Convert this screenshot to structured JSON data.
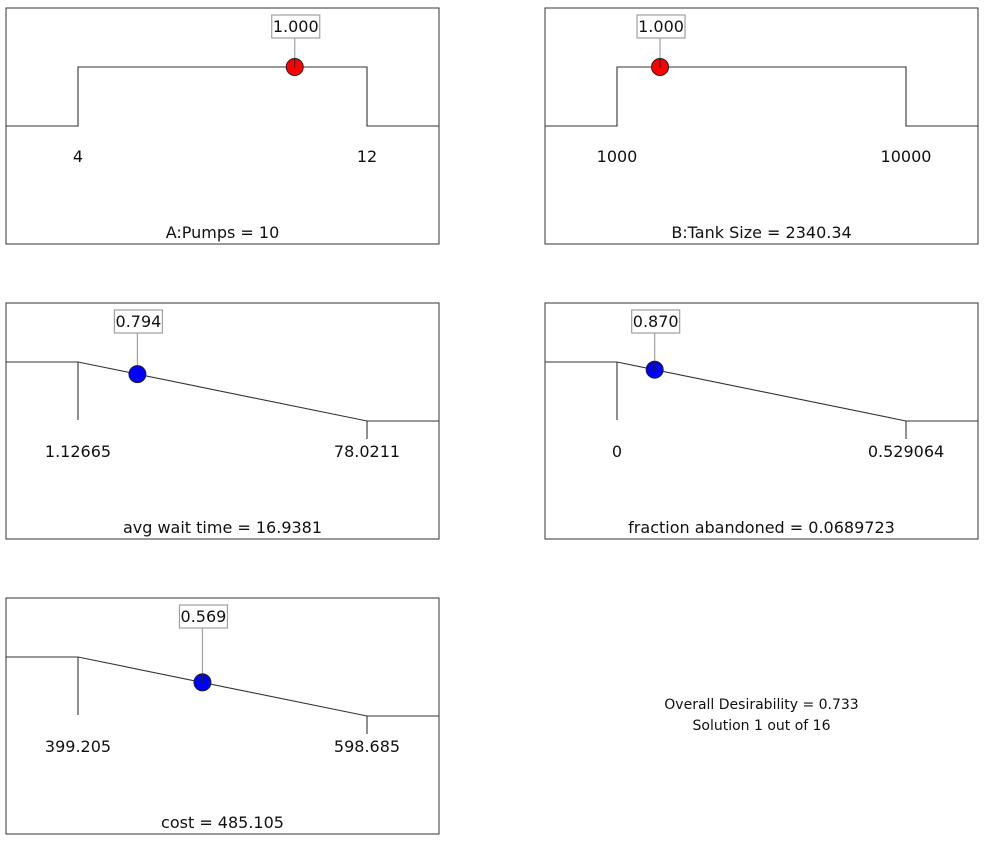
{
  "chart_data": [
    {
      "type": "line",
      "name": "A:Pumps",
      "caption": "A:Pumps = 10",
      "low_label": "4",
      "high_label": "12",
      "low": 4,
      "high": 12,
      "current_value": 10,
      "desirability": 1.0,
      "desirability_label": "1.000",
      "goal": "in range",
      "marker_color": "#ff0000"
    },
    {
      "type": "line",
      "name": "B:Tank Size",
      "caption": "B:Tank Size = 2340.34",
      "low_label": "1000",
      "high_label": "10000",
      "low": 1000,
      "high": 10000,
      "current_value": 2340.34,
      "desirability": 1.0,
      "desirability_label": "1.000",
      "goal": "in range",
      "marker_color": "#ff0000"
    },
    {
      "type": "line",
      "name": "avg wait time",
      "caption": "avg wait time = 16.9381",
      "low_label": "1.12665",
      "high_label": "78.0211",
      "low": 1.12665,
      "high": 78.0211,
      "current_value": 16.9381,
      "desirability": 0.794,
      "desirability_label": "0.794",
      "goal": "minimize",
      "marker_color": "#0000ff"
    },
    {
      "type": "line",
      "name": "fraction abandoned",
      "caption": "fraction abandoned = 0.0689723",
      "low_label": "0",
      "high_label": "0.529064",
      "low": 0,
      "high": 0.529064,
      "current_value": 0.0689723,
      "desirability": 0.87,
      "desirability_label": "0.870",
      "goal": "minimize",
      "marker_color": "#0000ff"
    },
    {
      "type": "line",
      "name": "cost",
      "caption": "cost = 485.105",
      "low_label": "399.205",
      "high_label": "598.685",
      "low": 399.205,
      "high": 598.685,
      "current_value": 485.105,
      "desirability": 0.569,
      "desirability_label": "0.569",
      "goal": "minimize",
      "marker_color": "#0000ff"
    }
  ],
  "summary": {
    "overall": "Overall Desirability = 0.733",
    "solution": "Solution 1 out of 16"
  }
}
